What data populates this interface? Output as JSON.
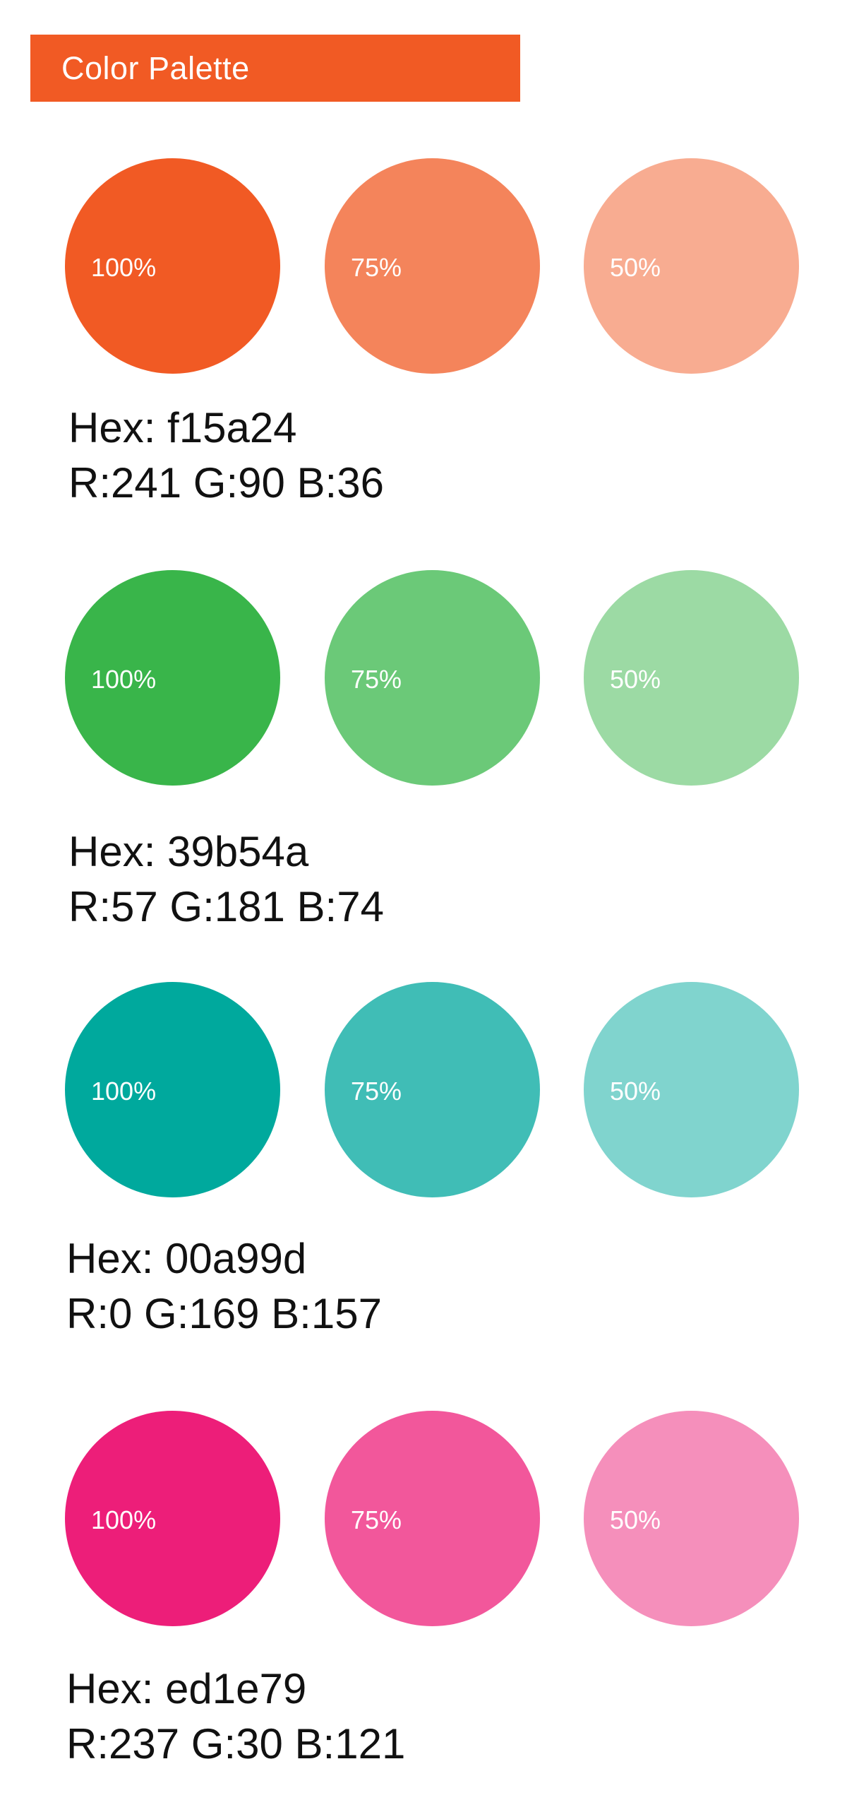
{
  "header": {
    "title": "Color Palette",
    "color": "#f15a24"
  },
  "palettes": [
    {
      "hex_label": "Hex: f15a24",
      "rgb_label": "R:241 G:90 B:36",
      "colors": [
        "#f15a24",
        "#f4845b",
        "#f8ac91"
      ],
      "swatches": [
        {
          "label": "100%"
        },
        {
          "label": "75%"
        },
        {
          "label": "50%"
        }
      ]
    },
    {
      "hex_label": "Hex: 39b54a",
      "rgb_label": "R:57 G:181 B:74",
      "colors": [
        "#39b54a",
        "#6bc978",
        "#9cdaa4"
      ],
      "swatches": [
        {
          "label": "100%"
        },
        {
          "label": "75%"
        },
        {
          "label": "50%"
        }
      ]
    },
    {
      "hex_label": "Hex: 00a99d",
      "rgb_label": "R:0 G:169 B:157",
      "colors": [
        "#00a99d",
        "#40bdb6",
        "#80d4ce"
      ],
      "swatches": [
        {
          "label": "100%"
        },
        {
          "label": "75%"
        },
        {
          "label": "50%"
        }
      ]
    },
    {
      "hex_label": "Hex: ed1e79",
      "rgb_label": "R:237 G:30 B:121",
      "colors": [
        "#ed1e79",
        "#f2579b",
        "#f58fbb"
      ],
      "swatches": [
        {
          "label": "100%"
        },
        {
          "label": "75%"
        },
        {
          "label": "50%"
        }
      ]
    }
  ]
}
